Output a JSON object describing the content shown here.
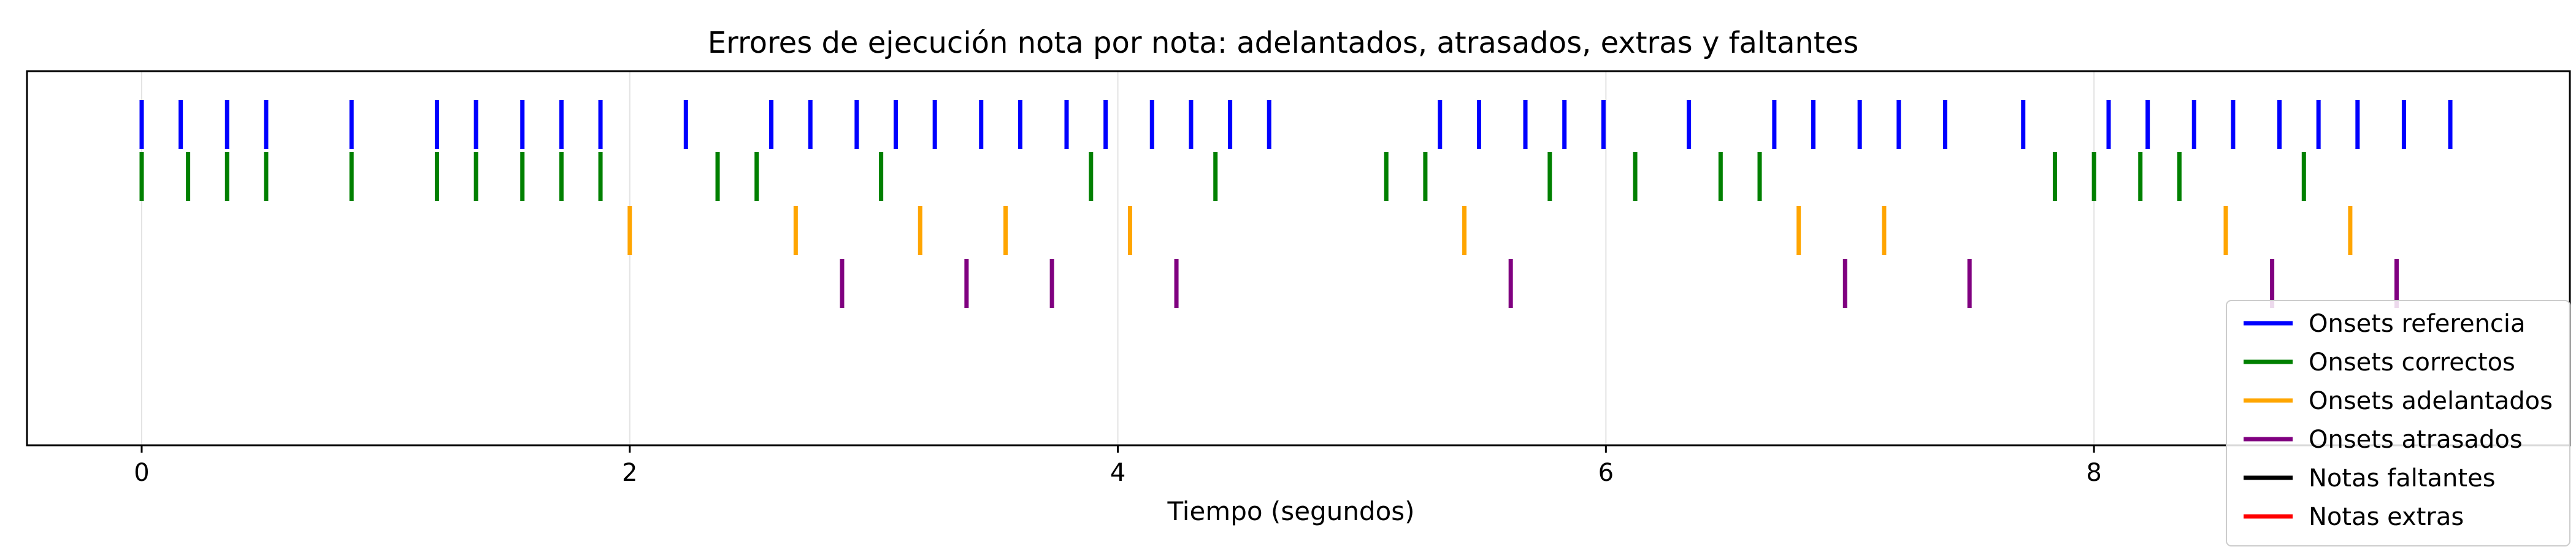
{
  "chart_data": {
    "type": "event-plot",
    "title": "Errores de ejecución nota por nota: adelantados, atrasados, extras y faltantes",
    "xlabel": "Tiempo (segundos)",
    "ylabel": "",
    "xlim": [
      -0.47,
      9.95
    ],
    "x_ticks": [
      0,
      2,
      4,
      6,
      8
    ],
    "x_tick_labels": [
      "0",
      "2",
      "4",
      "6",
      "8"
    ],
    "grid": "vertical",
    "legend_position": "bottom-right",
    "series": [
      {
        "name": "Onsets referencia",
        "color": "#0000ff",
        "row": 0,
        "x": [
          0.0,
          0.16,
          0.35,
          0.51,
          0.86,
          1.21,
          1.37,
          1.56,
          1.72,
          1.88,
          2.23,
          2.58,
          2.74,
          2.93,
          3.09,
          3.25,
          3.44,
          3.6,
          3.79,
          3.95,
          4.14,
          4.3,
          4.46,
          4.62,
          5.32,
          5.48,
          5.67,
          5.83,
          5.99,
          6.34,
          6.69,
          6.85,
          7.04,
          7.2,
          7.39,
          7.71,
          8.06,
          8.22,
          8.41,
          8.57,
          8.76,
          8.92,
          9.08,
          9.27,
          9.46
        ]
      },
      {
        "name": "Onsets correctos",
        "color": "#008000",
        "row": 1,
        "x": [
          0.0,
          0.19,
          0.35,
          0.51,
          0.86,
          1.21,
          1.37,
          1.56,
          1.72,
          1.88,
          2.36,
          2.52,
          3.03,
          3.89,
          4.4,
          5.1,
          5.26,
          5.77,
          6.12,
          6.47,
          6.63,
          7.84,
          8.0,
          8.19,
          8.35,
          8.86
        ]
      },
      {
        "name": "Onsets adelantados",
        "color": "#ffa500",
        "row": 2,
        "x": [
          2.0,
          2.68,
          3.19,
          3.54,
          4.05,
          5.42,
          6.79,
          7.14,
          8.54,
          9.05
        ]
      },
      {
        "name": "Onsets atrasados",
        "color": "#800080",
        "row": 3,
        "x": [
          2.87,
          3.38,
          3.73,
          4.24,
          5.61,
          6.98,
          7.49,
          8.73,
          9.24
        ]
      },
      {
        "name": "Notas faltantes",
        "color": "#000000",
        "row": 4,
        "x": []
      },
      {
        "name": "Notas extras",
        "color": "#ff0000",
        "row": 5,
        "x": []
      }
    ]
  }
}
